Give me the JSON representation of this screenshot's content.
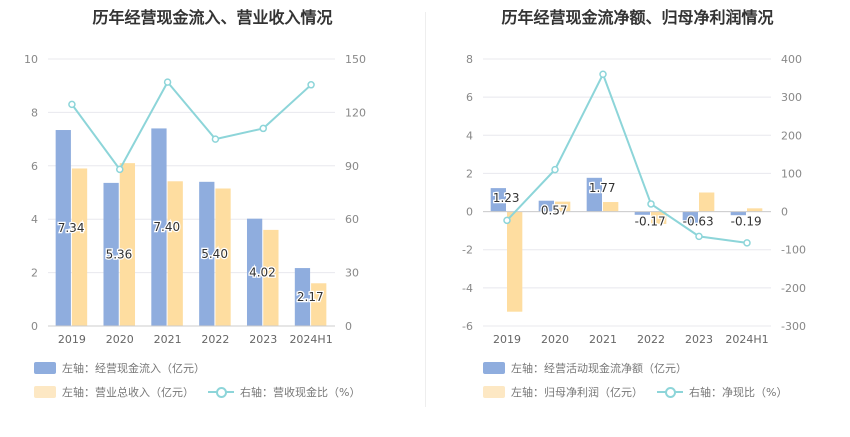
{
  "chart_data": [
    {
      "type": "bar",
      "title": "历年经营现金流入、营业收入情况",
      "categories": [
        "2019",
        "2020",
        "2021",
        "2022",
        "2023",
        "2024H1"
      ],
      "left_axis": {
        "ticks": [
          "0",
          "2",
          "4",
          "6",
          "8",
          "10"
        ],
        "ylim": [
          0,
          10
        ]
      },
      "right_axis": {
        "ticks": [
          "0",
          "30",
          "60",
          "90",
          "120",
          "150"
        ],
        "ylim": [
          0,
          150
        ]
      },
      "series": [
        {
          "name": "左轴：经营现金流入（亿元）",
          "type": "bar",
          "axis": "left",
          "color": "#8fadde",
          "values": [
            7.34,
            5.36,
            7.4,
            5.4,
            4.02,
            2.17
          ],
          "labels": [
            "7.34",
            "5.36",
            "7.40",
            "5.40",
            "4.02",
            "2.17"
          ]
        },
        {
          "name": "左轴：营业总收入（亿元）",
          "type": "bar",
          "axis": "left",
          "color": "#fedda0",
          "values": [
            5.9,
            6.1,
            5.42,
            5.15,
            3.6,
            1.6
          ]
        },
        {
          "name": "右轴：营收现金比（%）",
          "type": "line",
          "axis": "right",
          "color": "#8dd5d9",
          "values": [
            124.5,
            88,
            137,
            105,
            111,
            135.5
          ]
        }
      ]
    },
    {
      "type": "bar",
      "title": "历年经营现金流净额、归母净利润情况",
      "categories": [
        "2019",
        "2020",
        "2021",
        "2022",
        "2023",
        "2024H1"
      ],
      "left_axis": {
        "ticks": [
          "-6",
          "-4",
          "-2",
          "0",
          "2",
          "4",
          "6",
          "8"
        ],
        "ylim": [
          -6,
          8
        ]
      },
      "right_axis": {
        "ticks": [
          "-300",
          "-200",
          "-100",
          "0",
          "100",
          "200",
          "300",
          "400"
        ],
        "ylim": [
          -300,
          400
        ]
      },
      "series": [
        {
          "name": "左轴：经营活动现金流净额（亿元）",
          "type": "bar",
          "axis": "left",
          "color": "#8fadde",
          "values": [
            1.23,
            0.57,
            1.77,
            -0.17,
            -0.63,
            -0.19
          ],
          "labels": [
            "1.23",
            "0.57",
            "1.77",
            "-0.17",
            "-0.63",
            "-0.19"
          ]
        },
        {
          "name": "左轴：归母净利润（亿元）",
          "type": "bar",
          "axis": "left",
          "color": "#fedda0",
          "values": [
            -5.25,
            0.52,
            0.5,
            -0.65,
            1.0,
            0.17
          ]
        },
        {
          "name": "右轴：净现比（%）",
          "type": "line",
          "axis": "right",
          "color": "#8dd5d9",
          "values": [
            -23,
            110,
            360,
            20,
            -65,
            -82
          ]
        }
      ]
    }
  ]
}
